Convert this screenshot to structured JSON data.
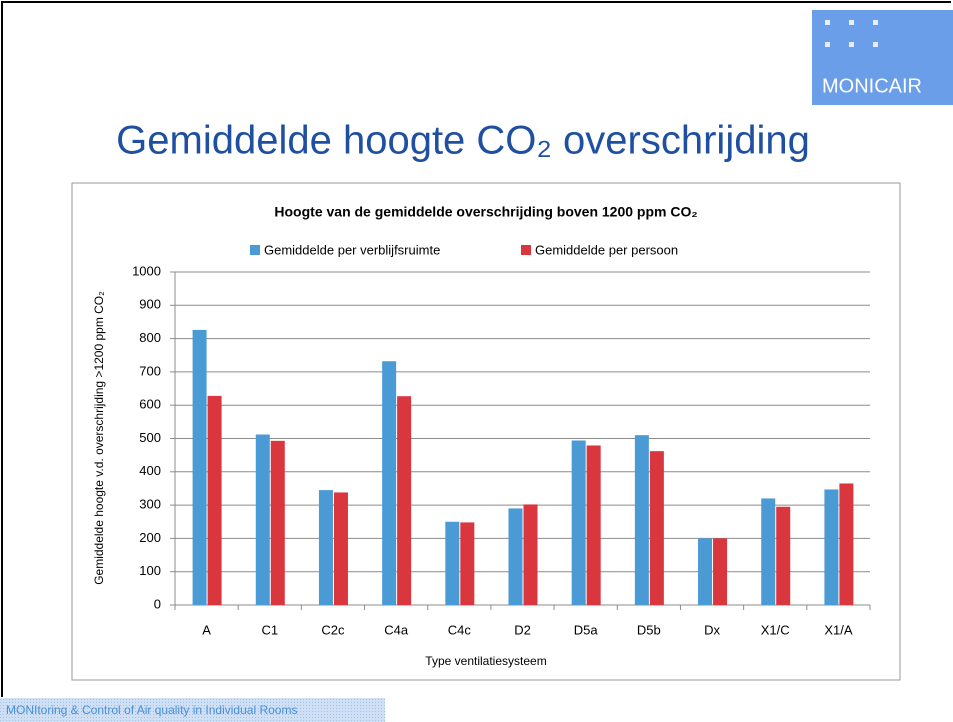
{
  "logo": "MONICAIR",
  "slide_title": "Gemiddelde hoogte CO₂ overschrijding",
  "footer": "MONItoring & Control of Air quality in Individual Rooms",
  "chart_data": {
    "type": "bar",
    "title": "Hoogte van de gemiddelde overschrijding boven 1200 ppm CO₂",
    "y_label": "Gemiddelde hoogte v.d. overschrijding >1200 ppm CO₂",
    "x_label": "Type ventilatiesysteem",
    "categories": [
      "A",
      "C1",
      "C2c",
      "C4a",
      "C4c",
      "D2",
      "D5a",
      "D5b",
      "Dx",
      "X1/C",
      "X1/A"
    ],
    "series": [
      {
        "name": "Gemiddelde per verblijfsruimte",
        "color": "#4a9ad6",
        "values": [
          826,
          512,
          345,
          732,
          250,
          290,
          494,
          510,
          200,
          320,
          347
        ]
      },
      {
        "name": "Gemiddelde per persoon",
        "color": "#d9363e",
        "values": [
          628,
          493,
          338,
          627,
          248,
          302,
          479,
          462,
          200,
          295,
          365
        ]
      }
    ],
    "ylim": [
      0,
      1000
    ],
    "yticks": [
      0,
      100,
      200,
      300,
      400,
      500,
      600,
      700,
      800,
      900,
      1000
    ],
    "grid": true,
    "legend": "top"
  }
}
